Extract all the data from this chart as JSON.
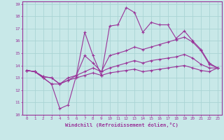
{
  "xlabel": "Windchill (Refroidissement éolien,°C)",
  "background_color": "#c8e8e8",
  "grid_color": "#aad4d4",
  "line_color": "#993399",
  "xlim": [
    -0.5,
    23.5
  ],
  "ylim": [
    10,
    19.2
  ],
  "xticks": [
    0,
    1,
    2,
    3,
    4,
    5,
    6,
    7,
    8,
    9,
    10,
    11,
    12,
    13,
    14,
    15,
    16,
    17,
    18,
    19,
    20,
    21,
    22,
    23
  ],
  "yticks": [
    10,
    11,
    12,
    13,
    14,
    15,
    16,
    17,
    18,
    19
  ],
  "series": [
    [
      13.6,
      13.5,
      13.0,
      12.5,
      10.5,
      10.8,
      13.2,
      16.7,
      14.8,
      13.2,
      17.2,
      17.3,
      18.7,
      18.3,
      16.7,
      17.5,
      17.3,
      17.3,
      16.2,
      16.8,
      16.0,
      15.3,
      14.2,
      13.8
    ],
    [
      13.6,
      13.5,
      13.0,
      12.5,
      12.5,
      13.0,
      13.2,
      14.8,
      14.2,
      13.5,
      14.8,
      15.0,
      15.2,
      15.5,
      15.3,
      15.5,
      15.7,
      15.9,
      16.1,
      16.3,
      15.9,
      15.2,
      14.1,
      13.8
    ],
    [
      13.6,
      13.5,
      13.1,
      13.0,
      12.5,
      12.8,
      13.2,
      13.5,
      13.8,
      13.5,
      13.8,
      14.0,
      14.2,
      14.4,
      14.2,
      14.4,
      14.5,
      14.6,
      14.7,
      14.9,
      14.6,
      14.1,
      13.8,
      13.8
    ],
    [
      13.6,
      13.5,
      13.1,
      13.0,
      12.5,
      12.8,
      13.0,
      13.2,
      13.4,
      13.2,
      13.4,
      13.5,
      13.6,
      13.7,
      13.5,
      13.6,
      13.7,
      13.8,
      13.9,
      14.0,
      13.8,
      13.6,
      13.5,
      13.8
    ]
  ]
}
